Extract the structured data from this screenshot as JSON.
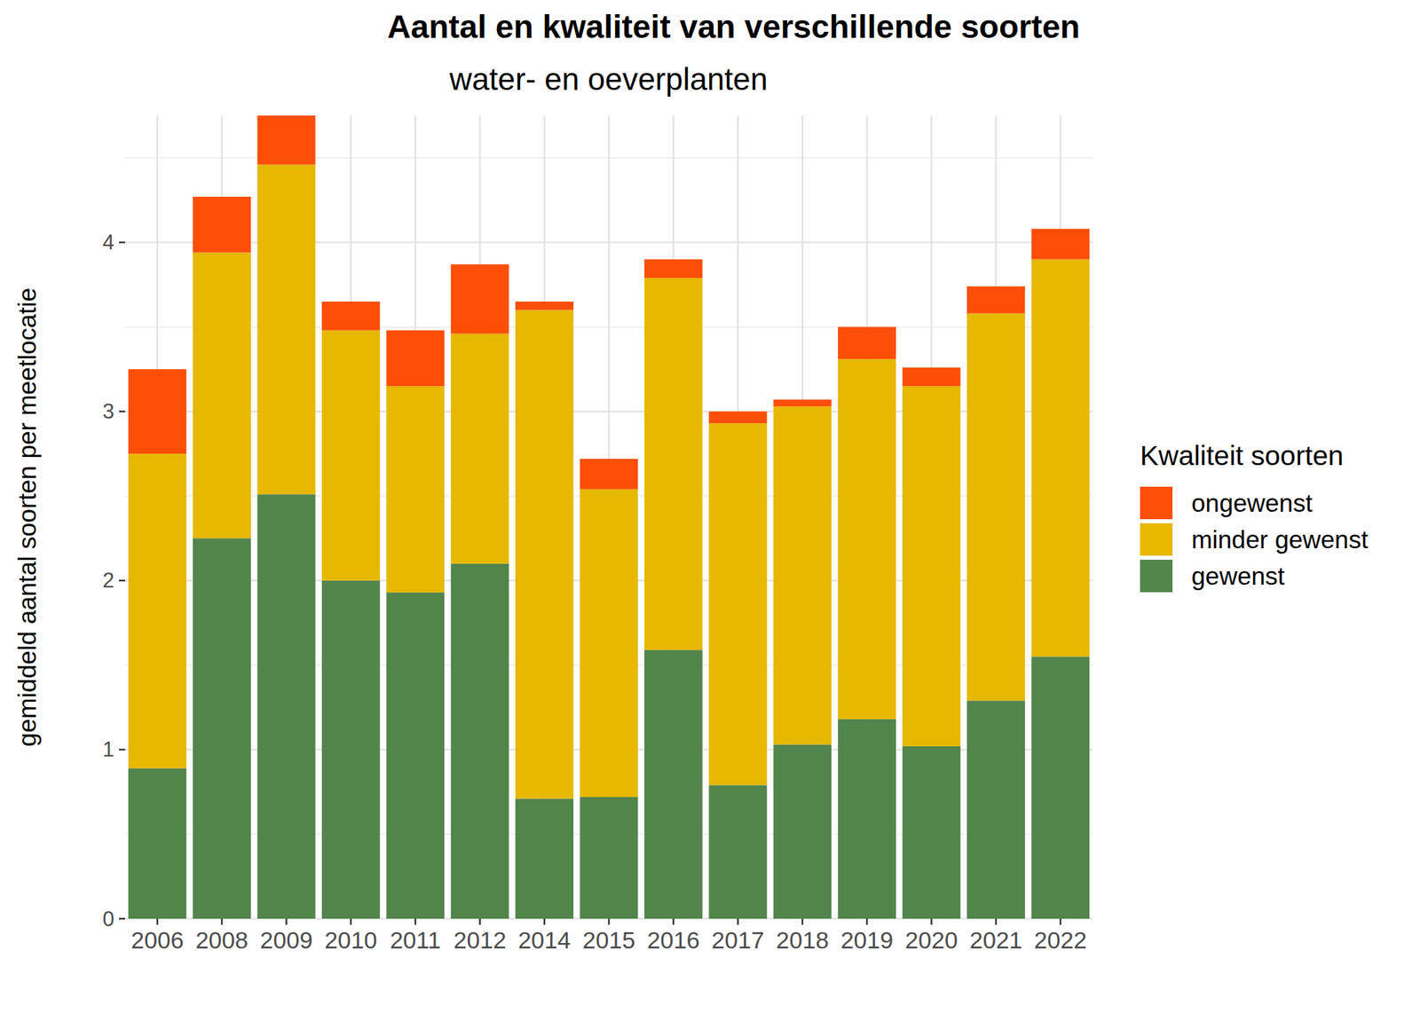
{
  "chart_data": {
    "type": "bar",
    "title": "Aantal en kwaliteit van verschillende soorten",
    "subtitle": "water- en oeverplanten",
    "y_label": "gemiddeld aantal soorten per meetlocatie",
    "legend_title": "Kwaliteit soorten",
    "categories": [
      "2006",
      "2008",
      "2009",
      "2010",
      "2011",
      "2012",
      "2014",
      "2015",
      "2016",
      "2017",
      "2018",
      "2019",
      "2020",
      "2021",
      "2022"
    ],
    "series": [
      {
        "name": "gewenst",
        "color": "#52854C",
        "values": [
          0.89,
          2.25,
          2.51,
          2.0,
          1.93,
          2.1,
          0.71,
          0.72,
          1.59,
          0.79,
          1.03,
          1.18,
          1.02,
          1.29,
          1.55
        ]
      },
      {
        "name": "minder gewenst",
        "color": "#E7B800",
        "values": [
          1.86,
          1.69,
          1.95,
          1.48,
          1.22,
          1.36,
          2.89,
          1.82,
          2.2,
          2.14,
          2.0,
          2.13,
          2.13,
          2.29,
          2.35
        ]
      },
      {
        "name": "ongewenst",
        "color": "#FC4E07",
        "values": [
          0.5,
          0.33,
          0.29,
          0.17,
          0.33,
          0.41,
          0.05,
          0.18,
          0.11,
          0.07,
          0.04,
          0.19,
          0.11,
          0.16,
          0.18
        ]
      }
    ],
    "ylim": [
      0,
      4.75
    ],
    "yticks": [
      0,
      1,
      2,
      3,
      4
    ],
    "stacked": true,
    "grid": true,
    "legend": "right"
  }
}
